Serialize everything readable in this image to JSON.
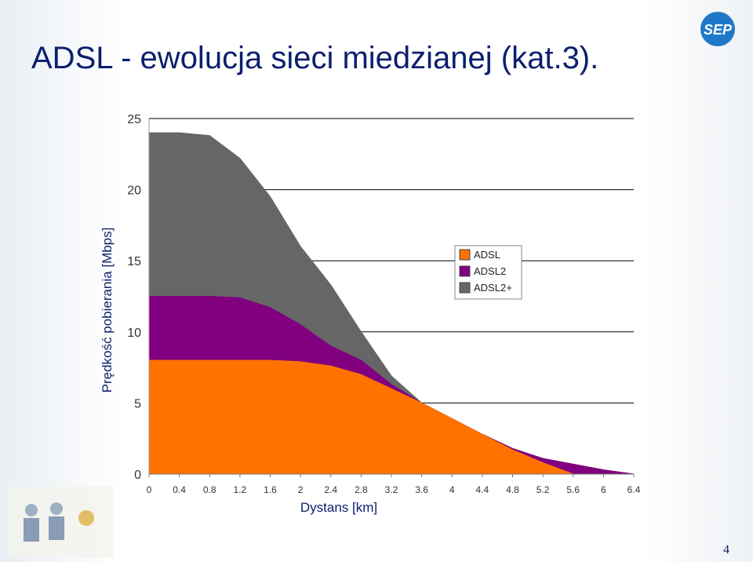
{
  "title": "ADSL - ewolucja sieci miedzianej (kat.3).",
  "logo": "SEP",
  "page_number": "4",
  "chart_data": {
    "type": "area",
    "x_label": "Dystans [km]",
    "y_label": "Prędkość pobierania [Mbps]",
    "x": [
      0,
      0.4,
      0.8,
      1.2,
      1.6,
      2,
      2.4,
      2.8,
      3.2,
      3.6,
      4,
      4.4,
      4.8,
      5.2,
      5.6,
      6,
      6.4
    ],
    "series": [
      {
        "name": "ADSL2+",
        "color": "#666666",
        "values": [
          24,
          24,
          23.8,
          22.2,
          19.5,
          16,
          13.3,
          10,
          6.9,
          5,
          3.9,
          2.8,
          1.8,
          1.1,
          0.7,
          0.3,
          0
        ]
      },
      {
        "name": "ADSL2",
        "color": "#800080",
        "values": [
          12.5,
          12.5,
          12.5,
          12.4,
          11.7,
          10.5,
          9,
          8,
          6.3,
          5,
          3.9,
          2.8,
          1.8,
          1.1,
          0.7,
          0.3,
          0
        ]
      },
      {
        "name": "ADSL",
        "color": "#ff7200",
        "values": [
          8,
          8,
          8,
          8,
          8,
          7.9,
          7.6,
          7,
          6,
          5,
          3.9,
          2.8,
          1.7,
          0.8,
          0,
          null,
          null
        ]
      }
    ],
    "xlim": [
      0,
      6.4
    ],
    "xticks": [
      0,
      0.4,
      0.8,
      1.2,
      1.6,
      2,
      2.4,
      2.8,
      3.2,
      3.6,
      4,
      4.4,
      4.8,
      5.2,
      5.6,
      6,
      6.4
    ],
    "ylim": [
      0,
      25
    ],
    "yticks": [
      0,
      5,
      10,
      15,
      20,
      25
    ],
    "grid": true,
    "legend_order": [
      2,
      1,
      0
    ]
  }
}
